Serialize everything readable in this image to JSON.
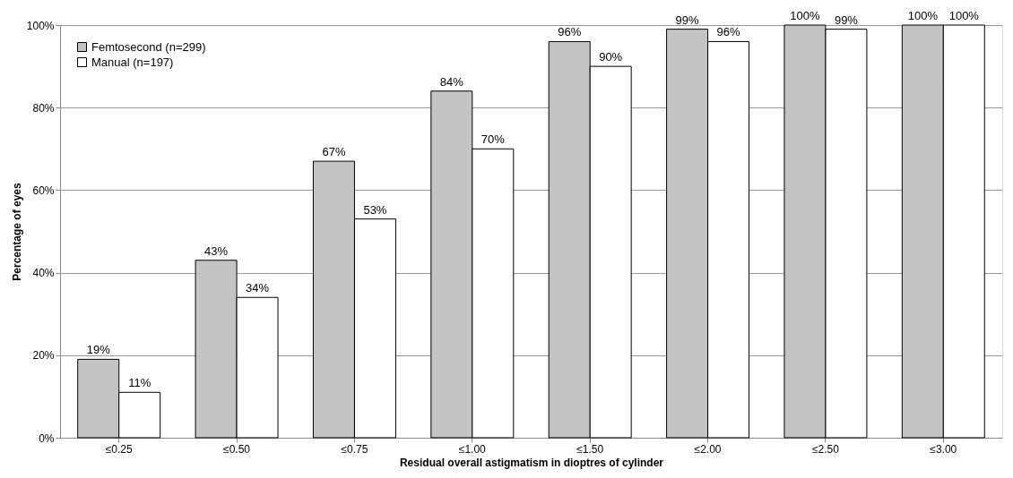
{
  "chart_data": {
    "type": "bar",
    "xlabel": "Residual  overall astigmatism  in dioptres of cylinder",
    "ylabel": "Percentage of eyes",
    "categories": [
      "≤0.25",
      "≤0.50",
      "≤0.75",
      "≤1.00",
      "≤1.50",
      "≤2.00",
      "≤2.50",
      "≤3.00"
    ],
    "series": [
      {
        "name": "Femtosecond (n=299)",
        "color": "#c4c4c4",
        "values": [
          19,
          43,
          67,
          84,
          96,
          99,
          100,
          100
        ],
        "value_labels": [
          "19%",
          "43%",
          "67%",
          "84%",
          "96%",
          "99%",
          "100%",
          "100%"
        ]
      },
      {
        "name": "Manual (n=197)",
        "color": "#ffffff",
        "values": [
          11,
          34,
          53,
          70,
          90,
          96,
          99,
          100
        ],
        "value_labels": [
          "11%",
          "34%",
          "53%",
          "70%",
          "90%",
          "96%",
          "99%",
          "100%"
        ]
      }
    ],
    "ylim": [
      0,
      100
    ],
    "yticks": [
      {
        "value": 0,
        "label": "0%"
      },
      {
        "value": 20,
        "label": "20%"
      },
      {
        "value": 40,
        "label": "40%"
      },
      {
        "value": 60,
        "label": "60%"
      },
      {
        "value": 80,
        "label": "80%"
      },
      {
        "value": 100,
        "label": "100%"
      }
    ],
    "grid": "y",
    "legend": "top left"
  }
}
